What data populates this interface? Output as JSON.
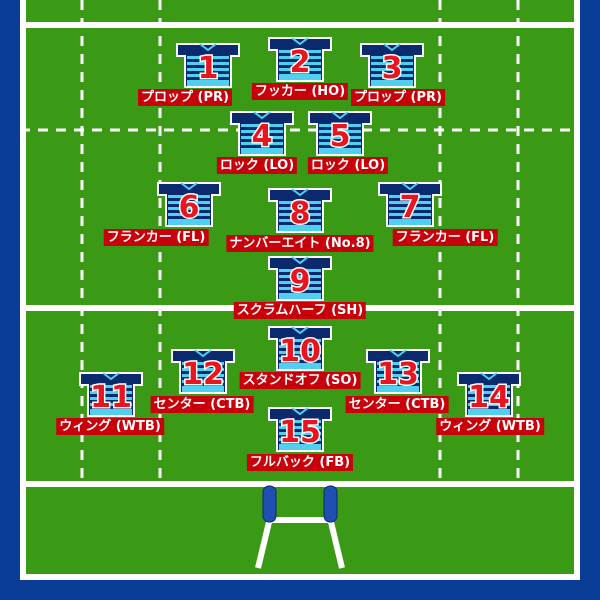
{
  "players": [
    {
      "number": "1",
      "label": "プロップ (PR)"
    },
    {
      "number": "2",
      "label": "フッカー (HO)"
    },
    {
      "number": "3",
      "label": "プロップ (PR)"
    },
    {
      "number": "4",
      "label": "ロック (LO)"
    },
    {
      "number": "5",
      "label": "ロック (LO)"
    },
    {
      "number": "6",
      "label": "フランカー (FL)"
    },
    {
      "number": "7",
      "label": "フランカー (FL)"
    },
    {
      "number": "8",
      "label": "ナンバーエイト (No.8)"
    },
    {
      "number": "9",
      "label": "スクラムハーフ (SH)"
    },
    {
      "number": "10",
      "label": "スタンドオフ (SO)"
    },
    {
      "number": "11",
      "label": "ウィング (WTB)"
    },
    {
      "number": "12",
      "label": "センター (CTB)"
    },
    {
      "number": "13",
      "label": "センター (CTB)"
    },
    {
      "number": "14",
      "label": "ウィング (WTB)"
    },
    {
      "number": "15",
      "label": "フルバック (FB)"
    }
  ],
  "colors": {
    "grass": "#3a9a16",
    "border": "#0a3d96",
    "line": "#ffffff",
    "jersey_dark": "#0b2a6e",
    "jersey_light": "#4fd0f0",
    "number_fill": "#e8141e",
    "label_bg": "#c8000a",
    "goal_pad": "#1f4fb0"
  }
}
